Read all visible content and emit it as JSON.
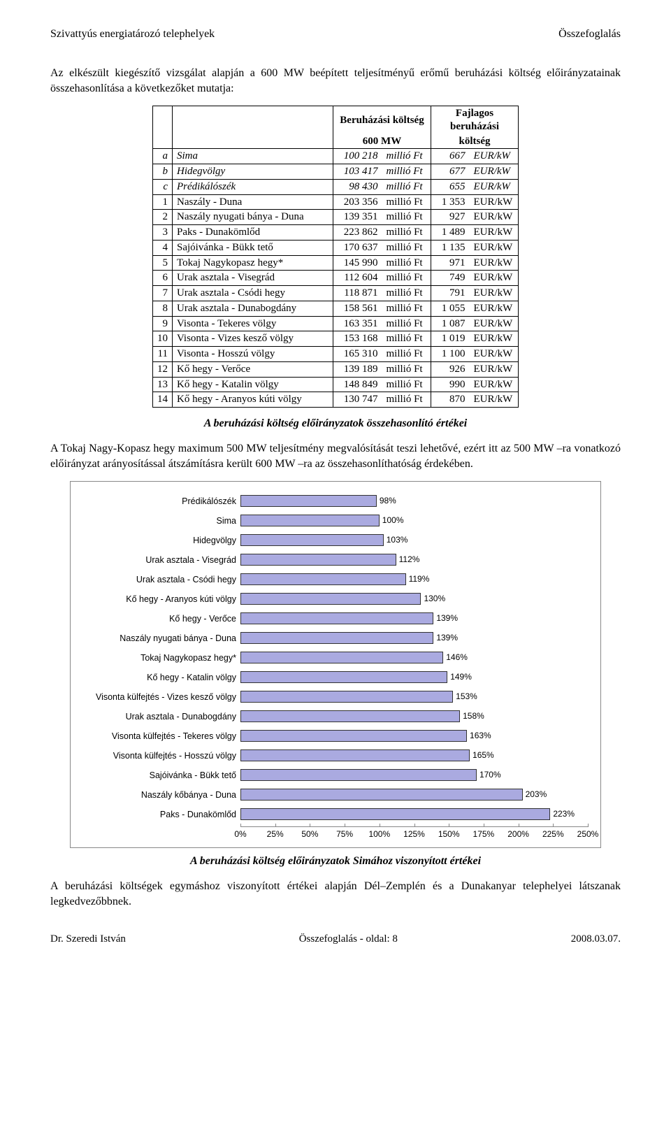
{
  "header": {
    "left": "Szivattyús energiatározó telephelyek",
    "right": "Összefoglalás"
  },
  "intro": "Az elkészült kiegészítő vizsgálat alapján a 600 MW beépített teljesítményű erőmű beruházási költség előirányzatainak összehasonlítása a következőket mutatja:",
  "table": {
    "head_col1": "Beruházási költség",
    "head_col1_sub": "600 MW",
    "head_col2": "Fajlagos beruházási",
    "head_col2_sub": "költség",
    "letter_rows": [
      {
        "idx": "a",
        "name": "Sima",
        "amount": "100 218",
        "unit": "millió Ft",
        "fval": "667",
        "funit": "EUR/kW"
      },
      {
        "idx": "b",
        "name": "Hidegvölgy",
        "amount": "103 417",
        "unit": "millió Ft",
        "fval": "677",
        "funit": "EUR/kW"
      },
      {
        "idx": "c",
        "name": "Prédikálószék",
        "amount": "98 430",
        "unit": "millió Ft",
        "fval": "655",
        "funit": "EUR/kW"
      }
    ],
    "num_rows": [
      {
        "idx": "1",
        "name": "Naszály - Duna",
        "amount": "203 356",
        "unit": "millió Ft",
        "fval": "1 353",
        "funit": "EUR/kW"
      },
      {
        "idx": "2",
        "name": "Naszály nyugati bánya - Duna",
        "amount": "139 351",
        "unit": "millió Ft",
        "fval": "927",
        "funit": "EUR/kW"
      },
      {
        "idx": "3",
        "name": "Paks - Dunakömlőd",
        "amount": "223 862",
        "unit": "millió Ft",
        "fval": "1 489",
        "funit": "EUR/kW"
      },
      {
        "idx": "4",
        "name": "Sajóivánka - Bükk tető",
        "amount": "170 637",
        "unit": "millió Ft",
        "fval": "1 135",
        "funit": "EUR/kW"
      },
      {
        "idx": "5",
        "name": "Tokaj Nagykopasz hegy*",
        "amount": "145 990",
        "unit": "millió Ft",
        "fval": "971",
        "funit": "EUR/kW"
      },
      {
        "idx": "6",
        "name": "Urak asztala - Visegrád",
        "amount": "112 604",
        "unit": "millió Ft",
        "fval": "749",
        "funit": "EUR/kW"
      },
      {
        "idx": "7",
        "name": "Urak asztala - Csódi hegy",
        "amount": "118 871",
        "unit": "millió Ft",
        "fval": "791",
        "funit": "EUR/kW"
      },
      {
        "idx": "8",
        "name": "Urak asztala - Dunabogdány",
        "amount": "158 561",
        "unit": "millió Ft",
        "fval": "1 055",
        "funit": "EUR/kW"
      },
      {
        "idx": "9",
        "name": "Visonta - Tekeres völgy",
        "amount": "163 351",
        "unit": "millió Ft",
        "fval": "1 087",
        "funit": "EUR/kW"
      },
      {
        "idx": "10",
        "name": "Visonta - Vizes kesző völgy",
        "amount": "153 168",
        "unit": "millió Ft",
        "fval": "1 019",
        "funit": "EUR/kW"
      },
      {
        "idx": "11",
        "name": "Visonta - Hosszú völgy",
        "amount": "165 310",
        "unit": "millió Ft",
        "fval": "1 100",
        "funit": "EUR/kW"
      },
      {
        "idx": "12",
        "name": "Kő hegy - Verőce",
        "amount": "139 189",
        "unit": "millió Ft",
        "fval": "926",
        "funit": "EUR/kW"
      },
      {
        "idx": "13",
        "name": "Kő hegy - Katalin völgy",
        "amount": "148 849",
        "unit": "millió Ft",
        "fval": "990",
        "funit": "EUR/kW"
      },
      {
        "idx": "14",
        "name": "Kő hegy - Aranyos kúti völgy",
        "amount": "130 747",
        "unit": "millió Ft",
        "fval": "870",
        "funit": "EUR/kW"
      }
    ]
  },
  "caption1": "A beruházási költség előirányzatok összehasonlító értékei",
  "para1": "A Tokaj Nagy-Kopasz hegy maximum 500 MW teljesítmény megvalósítását teszi lehetővé, ezért itt az 500 MW –ra vonatkozó előirányzat arányosítással átszámításra került 600 MW –ra az összehasonlíthatóság érdekében.",
  "chart": {
    "type": "bar-horizontal",
    "xmax": 250,
    "xtick_step": 25,
    "bar_color": "#aaaae0",
    "bar_border": "#333333",
    "value_suffix": "%",
    "ticks": [
      "0%",
      "25%",
      "50%",
      "75%",
      "100%",
      "125%",
      "150%",
      "175%",
      "200%",
      "225%",
      "250%"
    ],
    "bars": [
      {
        "label": "Prédikálószék",
        "value": 98
      },
      {
        "label": "Sima",
        "value": 100
      },
      {
        "label": "Hidegvölgy",
        "value": 103
      },
      {
        "label": "Urak asztala - Visegrád",
        "value": 112
      },
      {
        "label": "Urak asztala - Csódi hegy",
        "value": 119
      },
      {
        "label": "Kő hegy - Aranyos kúti völgy",
        "value": 130
      },
      {
        "label": "Kő hegy - Verőce",
        "value": 139
      },
      {
        "label": "Naszály nyugati bánya - Duna",
        "value": 139
      },
      {
        "label": "Tokaj Nagykopasz hegy*",
        "value": 146
      },
      {
        "label": "Kő hegy - Katalin völgy",
        "value": 149
      },
      {
        "label": "Visonta külfejtés - Vizes kesző völgy",
        "value": 153
      },
      {
        "label": "Urak asztala - Dunabogdány",
        "value": 158
      },
      {
        "label": "Visonta külfejtés - Tekeres völgy",
        "value": 163
      },
      {
        "label": "Visonta külfejtés - Hosszú völgy",
        "value": 165
      },
      {
        "label": "Sajóivánka - Bükk tető",
        "value": 170
      },
      {
        "label": "Naszály kőbánya - Duna",
        "value": 203
      },
      {
        "label": "Paks - Dunakömlőd",
        "value": 223
      }
    ]
  },
  "caption2": "A beruházási költség előirányzatok Simához viszonyított értékei",
  "para2": "A beruházási költségek egymáshoz viszonyított értékei alapján Dél–Zemplén és a Dunakanyar telephelyei látszanak legkedvezőbbnek.",
  "footer": {
    "left": "Dr. Szeredi István",
    "center": "Összefoglalás - oldal: 8",
    "right": "2008.03.07."
  }
}
